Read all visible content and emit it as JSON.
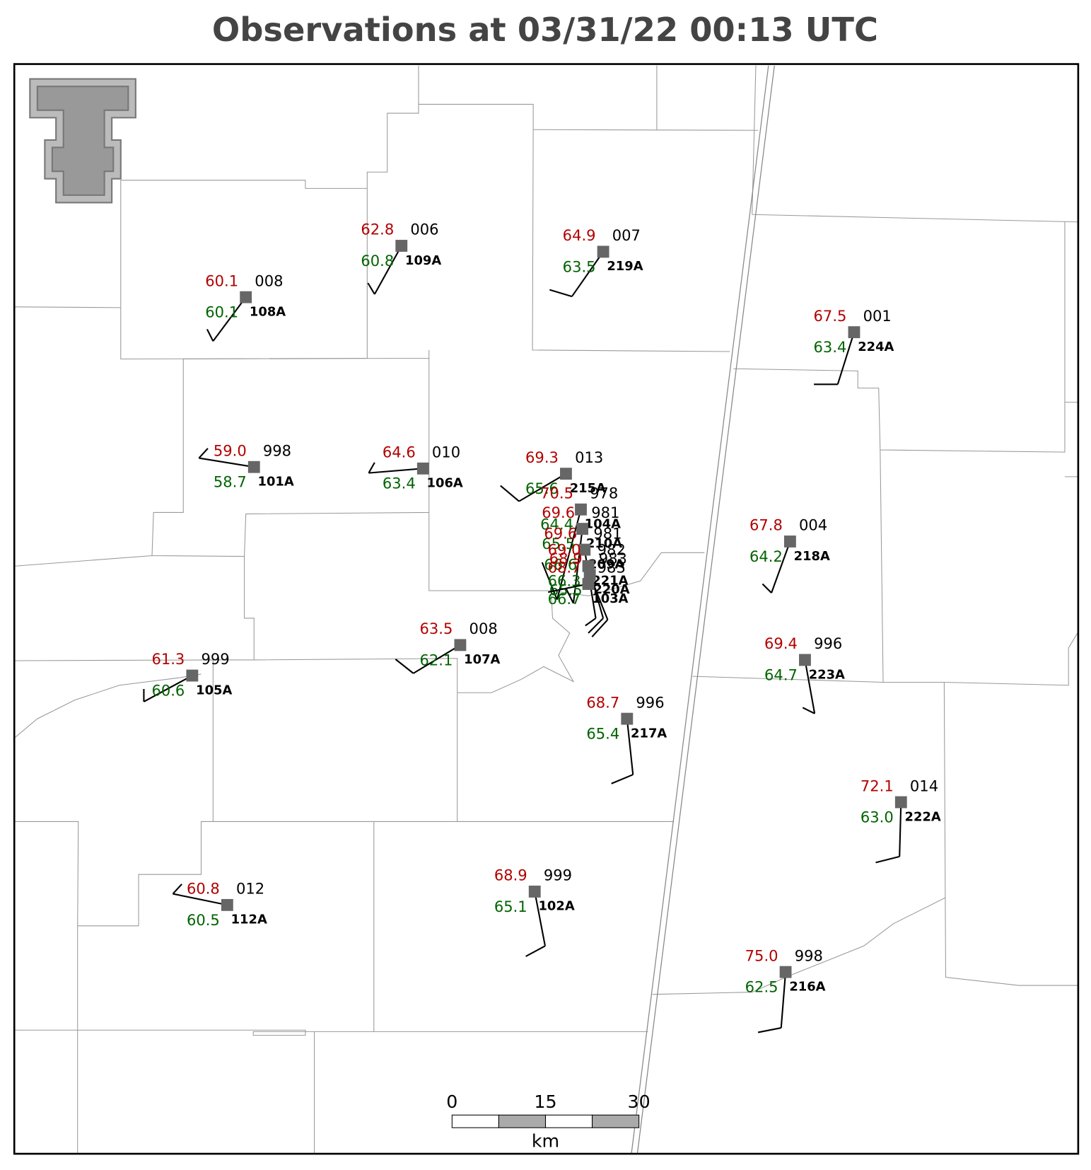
{
  "title": "Observations at 03/31/22 00:13 UTC",
  "stations": [
    {
      "id": "108A",
      "temperature": "60.1",
      "dewpoint": "60.1",
      "pressure": "008"
    },
    {
      "id": "109A",
      "temperature": "62.8",
      "dewpoint": "60.8",
      "pressure": "006"
    },
    {
      "id": "219A",
      "temperature": "64.9",
      "dewpoint": "63.5",
      "pressure": "007"
    },
    {
      "id": "224A",
      "temperature": "67.5",
      "dewpoint": "63.4",
      "pressure": "001"
    },
    {
      "id": "101A",
      "temperature": "59.0",
      "dewpoint": "58.7",
      "pressure": "998"
    },
    {
      "id": "106A",
      "temperature": "64.6",
      "dewpoint": "63.4",
      "pressure": "010"
    },
    {
      "id": "215A",
      "temperature": "69.3",
      "dewpoint": "65.6",
      "pressure": "013"
    },
    {
      "id": "218A",
      "temperature": "67.8",
      "dewpoint": "64.2",
      "pressure": "004"
    },
    {
      "id": "107A",
      "temperature": "63.5",
      "dewpoint": "62.1",
      "pressure": "008"
    },
    {
      "id": "105A",
      "temperature": "61.3",
      "dewpoint": "60.6",
      "pressure": "999"
    },
    {
      "id": "223A",
      "temperature": "69.4",
      "dewpoint": "64.7",
      "pressure": "996"
    },
    {
      "id": "217A",
      "temperature": "68.7",
      "dewpoint": "65.4",
      "pressure": "996"
    },
    {
      "id": "222A",
      "temperature": "72.1",
      "dewpoint": "63.0",
      "pressure": "014"
    },
    {
      "id": "112A",
      "temperature": "60.8",
      "dewpoint": "60.5",
      "pressure": "012"
    },
    {
      "id": "102A",
      "temperature": "68.9",
      "dewpoint": "65.1",
      "pressure": "999"
    },
    {
      "id": "216A",
      "temperature": "75.0",
      "dewpoint": "62.5",
      "pressure": "998"
    },
    {
      "id": "104A",
      "temperature": "70.5",
      "dewpoint": "64.4",
      "pressure": "978"
    },
    {
      "id": "210A",
      "temperature": "69.6",
      "dewpoint": "65.5",
      "pressure": "981"
    },
    {
      "id": "209A",
      "temperature": "69.6",
      "dewpoint": "66.6",
      "pressure": "981"
    },
    {
      "id": "221A",
      "temperature": "69.0",
      "dewpoint": "66.3",
      "pressure": "982"
    },
    {
      "id": "220A",
      "temperature": "68.9",
      "dewpoint": "65.5",
      "pressure": "983"
    },
    {
      "id": "103A",
      "temperature": "68.7",
      "dewpoint": "66.7",
      "pressure": "983"
    }
  ],
  "scale_bar": {
    "ticks": [
      0,
      15,
      30
    ],
    "unit": "km"
  }
}
